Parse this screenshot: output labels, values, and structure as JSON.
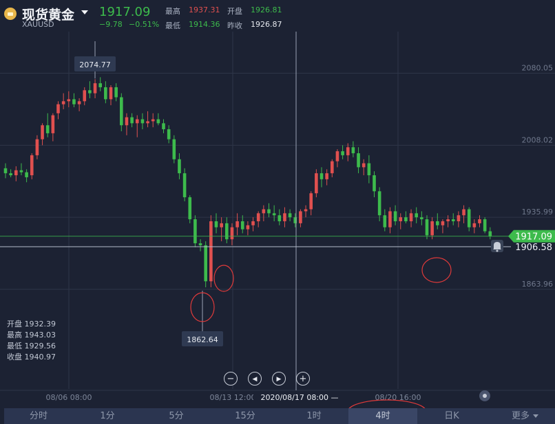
{
  "header": {
    "title": "现货黄金",
    "symbol": "XAUUSD",
    "price": "1917.09",
    "change": "−9.78",
    "change_pct": "−0.51%",
    "high_label": "最高",
    "high": "1937.31",
    "open_label": "开盘",
    "open": "1926.81",
    "low_label": "最低",
    "low": "1914.36",
    "prev_close_label": "昨收",
    "prev_close": "1926.87"
  },
  "ohlc_panel": {
    "open": "开盘 1932.39",
    "high": "最高 1943.03",
    "low": "最低 1929.56",
    "close": "收盘 1940.97"
  },
  "controls": {
    "zoom_out": "−",
    "prev": "◀",
    "next": "▶",
    "zoom_in": "+"
  },
  "tabs": [
    {
      "label": "分时",
      "active": false
    },
    {
      "label": "1分",
      "active": false
    },
    {
      "label": "5分",
      "active": false
    },
    {
      "label": "15分",
      "active": false
    },
    {
      "label": "1时",
      "active": false
    },
    {
      "label": "4时",
      "active": true
    },
    {
      "label": "日K",
      "active": false
    },
    {
      "label": "更多",
      "active": false
    }
  ],
  "colors": {
    "background": "#1c2233",
    "up": "#e0504f",
    "down": "#3dbb4c",
    "grid": "#2e3548",
    "annotation": "#e03a3a",
    "current_price_tag": "#3dbb4c"
  },
  "icons": {
    "bell": "bell-icon",
    "settings": "settings-knob-icon"
  },
  "chart_data": {
    "type": "candlestick",
    "symbol": "XAUUSD",
    "interval": "4时",
    "y_ticks": [
      "2080.05",
      "2008.02",
      "1935.99",
      "1863.96"
    ],
    "ylim": [
      1820,
      2112
    ],
    "x_ticks": [
      "08/06 08:00",
      "08/13 12:00",
      "08/20 16:00"
    ],
    "crosshair_time": "2020/08/17 08:00",
    "crosshair_price": "1906.58",
    "current_price": "1917.09",
    "max_label": "2074.77",
    "min_label": "1862.64",
    "candles": [
      [
        1985,
        1990,
        1975,
        1980
      ],
      [
        1980,
        1984,
        1976,
        1978
      ],
      [
        1978,
        1987,
        1972,
        1983
      ],
      [
        1983,
        1990,
        1978,
        1981
      ],
      [
        1981,
        1984,
        1971,
        1976
      ],
      [
        1978,
        2000,
        1974,
        1998
      ],
      [
        1998,
        2018,
        1994,
        2014
      ],
      [
        2014,
        2030,
        2008,
        2028
      ],
      [
        2028,
        2040,
        2016,
        2020
      ],
      [
        2020,
        2040,
        2012,
        2038
      ],
      [
        2040,
        2052,
        2034,
        2049
      ],
      [
        2049,
        2060,
        2044,
        2052
      ],
      [
        2052,
        2062,
        2046,
        2054
      ],
      [
        2054,
        2060,
        2046,
        2049
      ],
      [
        2049,
        2055,
        2042,
        2052
      ],
      [
        2052,
        2066,
        2048,
        2063
      ],
      [
        2063,
        2072,
        2055,
        2060
      ],
      [
        2060,
        2074,
        2055,
        2070
      ],
      [
        2070,
        2076,
        2062,
        2066
      ],
      [
        2066,
        2072,
        2050,
        2054
      ],
      [
        2054,
        2068,
        2048,
        2066
      ],
      [
        2066,
        2070,
        2052,
        2056
      ],
      [
        2056,
        2060,
        2022,
        2028
      ],
      [
        2028,
        2040,
        2018,
        2036
      ],
      [
        2036,
        2040,
        2026,
        2030
      ],
      [
        2030,
        2038,
        2016,
        2034
      ],
      [
        2034,
        2040,
        2024,
        2030
      ],
      [
        2030,
        2042,
        2026,
        2032
      ],
      [
        2032,
        2040,
        2026,
        2034
      ],
      [
        2034,
        2040,
        2028,
        2030
      ],
      [
        2030,
        2034,
        2020,
        2024
      ],
      [
        2024,
        2028,
        2010,
        2014
      ],
      [
        2014,
        2018,
        1990,
        1994
      ],
      [
        1994,
        2000,
        1974,
        1980
      ],
      [
        1980,
        1985,
        1952,
        1956
      ],
      [
        1956,
        1958,
        1930,
        1934
      ],
      [
        1934,
        1938,
        1906,
        1910
      ],
      [
        1910,
        1914,
        1902,
        1908
      ],
      [
        1908,
        1912,
        1866,
        1872
      ],
      [
        1872,
        1938,
        1866,
        1932
      ],
      [
        1932,
        1940,
        1920,
        1926
      ],
      [
        1926,
        1936,
        1912,
        1930
      ],
      [
        1930,
        1936,
        1910,
        1914
      ],
      [
        1914,
        1930,
        1908,
        1926
      ],
      [
        1926,
        1940,
        1918,
        1932
      ],
      [
        1932,
        1938,
        1920,
        1924
      ],
      [
        1924,
        1932,
        1918,
        1928
      ],
      [
        1928,
        1936,
        1922,
        1932
      ],
      [
        1932,
        1942,
        1926,
        1940
      ],
      [
        1940,
        1948,
        1932,
        1944
      ],
      [
        1944,
        1950,
        1936,
        1940
      ],
      [
        1940,
        1948,
        1932,
        1938
      ],
      [
        1938,
        1944,
        1928,
        1932
      ],
      [
        1932,
        1946,
        1926,
        1940
      ],
      [
        1940,
        1944,
        1932,
        1936
      ],
      [
        1936,
        1940,
        1926,
        1930
      ],
      [
        1930,
        1944,
        1926,
        1942
      ],
      [
        1942,
        1948,
        1936,
        1944
      ],
      [
        1944,
        1962,
        1938,
        1960
      ],
      [
        1960,
        1984,
        1956,
        1980
      ],
      [
        1980,
        1986,
        1966,
        1974
      ],
      [
        1974,
        1984,
        1968,
        1980
      ],
      [
        1980,
        1994,
        1976,
        1992
      ],
      [
        1992,
        2004,
        1986,
        2002
      ],
      [
        2002,
        2008,
        1994,
        1998
      ],
      [
        1998,
        2010,
        1992,
        2006
      ],
      [
        2006,
        2012,
        1996,
        2000
      ],
      [
        2000,
        2006,
        1980,
        1986
      ],
      [
        1986,
        1994,
        1978,
        1990
      ],
      [
        1990,
        1998,
        1970,
        1978
      ],
      [
        1978,
        1982,
        1956,
        1962
      ],
      [
        1962,
        1966,
        1932,
        1938
      ],
      [
        1938,
        1944,
        1922,
        1926
      ],
      [
        1926,
        1946,
        1920,
        1942
      ],
      [
        1942,
        1948,
        1928,
        1932
      ],
      [
        1932,
        1940,
        1924,
        1936
      ],
      [
        1936,
        1942,
        1930,
        1932
      ],
      [
        1932,
        1944,
        1926,
        1940
      ],
      [
        1940,
        1946,
        1930,
        1936
      ],
      [
        1936,
        1942,
        1928,
        1934
      ],
      [
        1934,
        1938,
        1914,
        1918
      ],
      [
        1918,
        1936,
        1914,
        1932
      ],
      [
        1932,
        1940,
        1924,
        1928
      ],
      [
        1928,
        1934,
        1920,
        1932
      ],
      [
        1932,
        1938,
        1926,
        1934
      ],
      [
        1934,
        1940,
        1928,
        1932
      ],
      [
        1932,
        1942,
        1926,
        1938
      ],
      [
        1938,
        1948,
        1930,
        1944
      ],
      [
        1944,
        1946,
        1922,
        1926
      ],
      [
        1926,
        1934,
        1920,
        1930
      ],
      [
        1930,
        1938,
        1926,
        1934
      ],
      [
        1934,
        1936,
        1920,
        1922
      ],
      [
        1922,
        1926,
        1914,
        1917
      ]
    ]
  }
}
